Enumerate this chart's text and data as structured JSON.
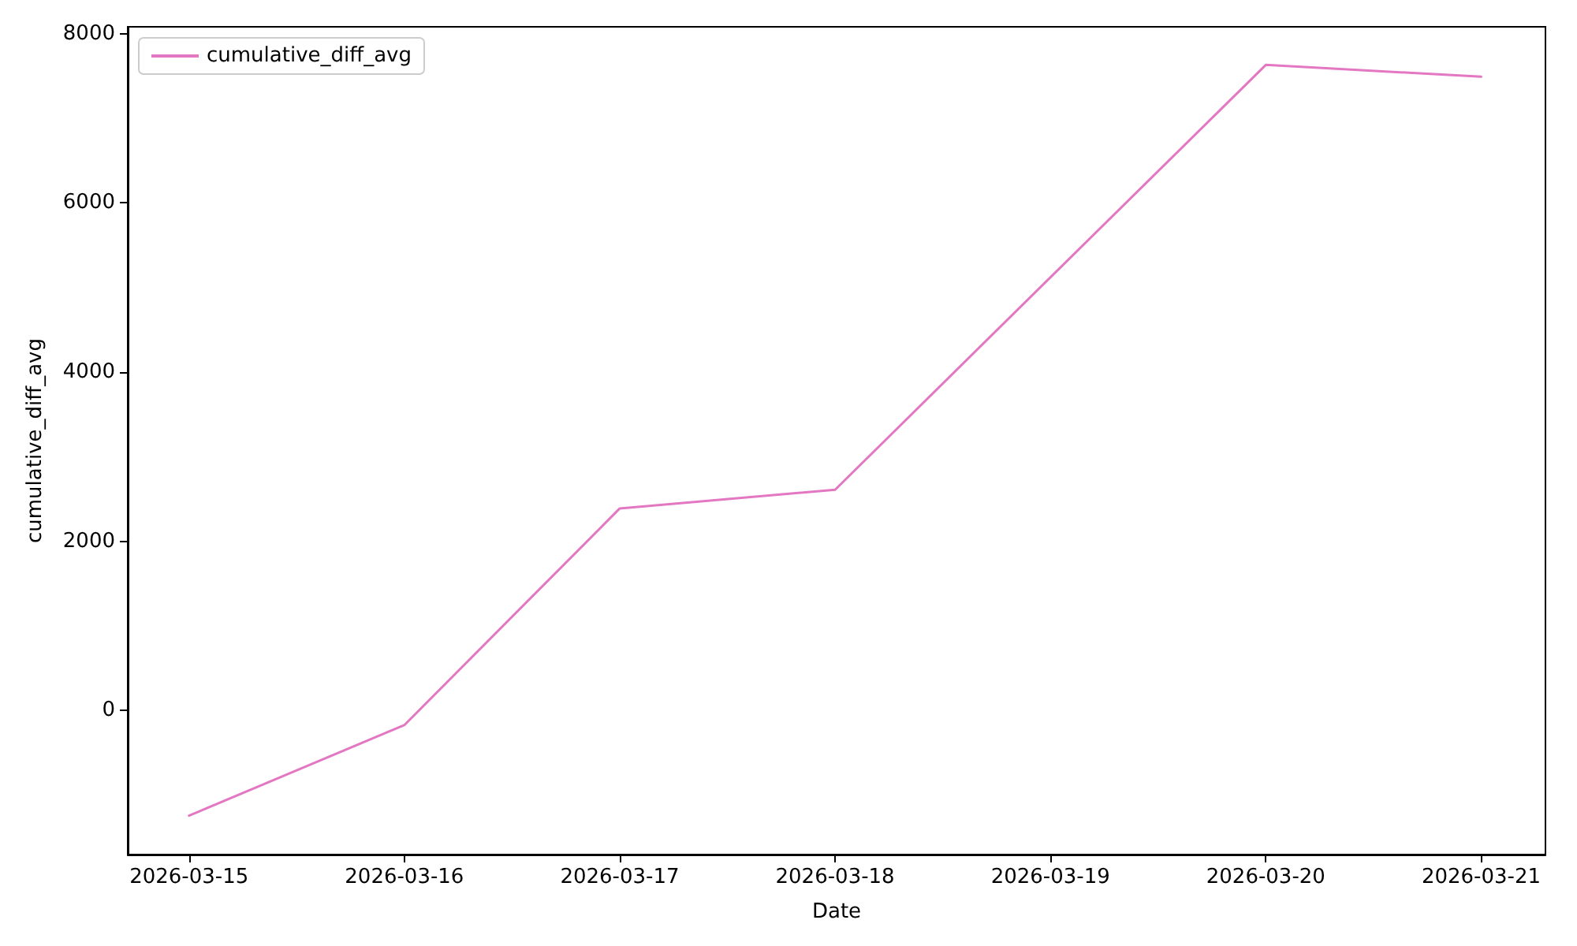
{
  "chart_data": {
    "type": "line",
    "xlabel": "Date",
    "ylabel": "cumulative_diff_avg",
    "x": [
      "2026-03-15",
      "2026-03-16",
      "2026-03-17",
      "2026-03-18",
      "2026-03-20",
      "2026-03-21"
    ],
    "series": [
      {
        "name": "cumulative_diff_avg",
        "color": "#e377c2",
        "values": [
          -1240,
          -170,
          2390,
          2610,
          7630,
          7490
        ]
      }
    ],
    "xlim": [
      "2026-03-14T17:10",
      "2026-03-21T07:10"
    ],
    "xticks": [
      "2026-03-15",
      "2026-03-16",
      "2026-03-17",
      "2026-03-18",
      "2026-03-19",
      "2026-03-20",
      "2026-03-21"
    ],
    "ylim": [
      -1700,
      8080
    ],
    "yticks": [
      0,
      2000,
      4000,
      6000,
      8000
    ],
    "grid": false,
    "legend": "top left",
    "marker": "none",
    "line_style": "solid"
  }
}
